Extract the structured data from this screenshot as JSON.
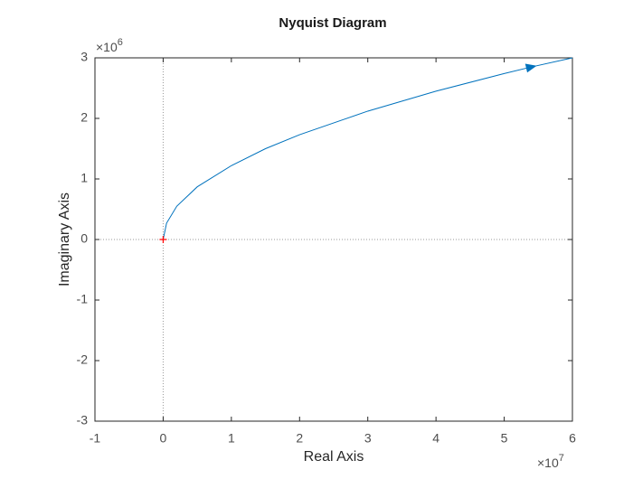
{
  "chart_data": {
    "type": "line",
    "title": "Nyquist Diagram",
    "x_label": "Real Axis",
    "y_label": "Imaginary Axis",
    "x_scale_base": "×10",
    "x_scale_power": "7",
    "y_scale_base": "×10",
    "y_scale_power": "6",
    "series": [
      {
        "color": "#0072bd",
        "x": [
          0,
          0.05,
          0.2,
          0.5,
          1,
          1.5,
          2,
          3,
          4,
          5,
          5.4,
          6
        ],
        "values": [
          0,
          0.27,
          0.55,
          0.87,
          1.22,
          1.5,
          1.73,
          2.12,
          2.45,
          2.74,
          2.85,
          3.0
        ]
      }
    ],
    "critical_point": {
      "x": 0,
      "y": 0,
      "color": "#ff0000"
    },
    "xlim": [
      -1,
      6
    ],
    "xticks": [
      -1,
      0,
      1,
      2,
      3,
      4,
      5,
      6
    ],
    "ylim": [
      -3,
      3
    ],
    "yticks": [
      -3,
      -2,
      -1,
      0,
      1,
      2,
      3
    ]
  }
}
